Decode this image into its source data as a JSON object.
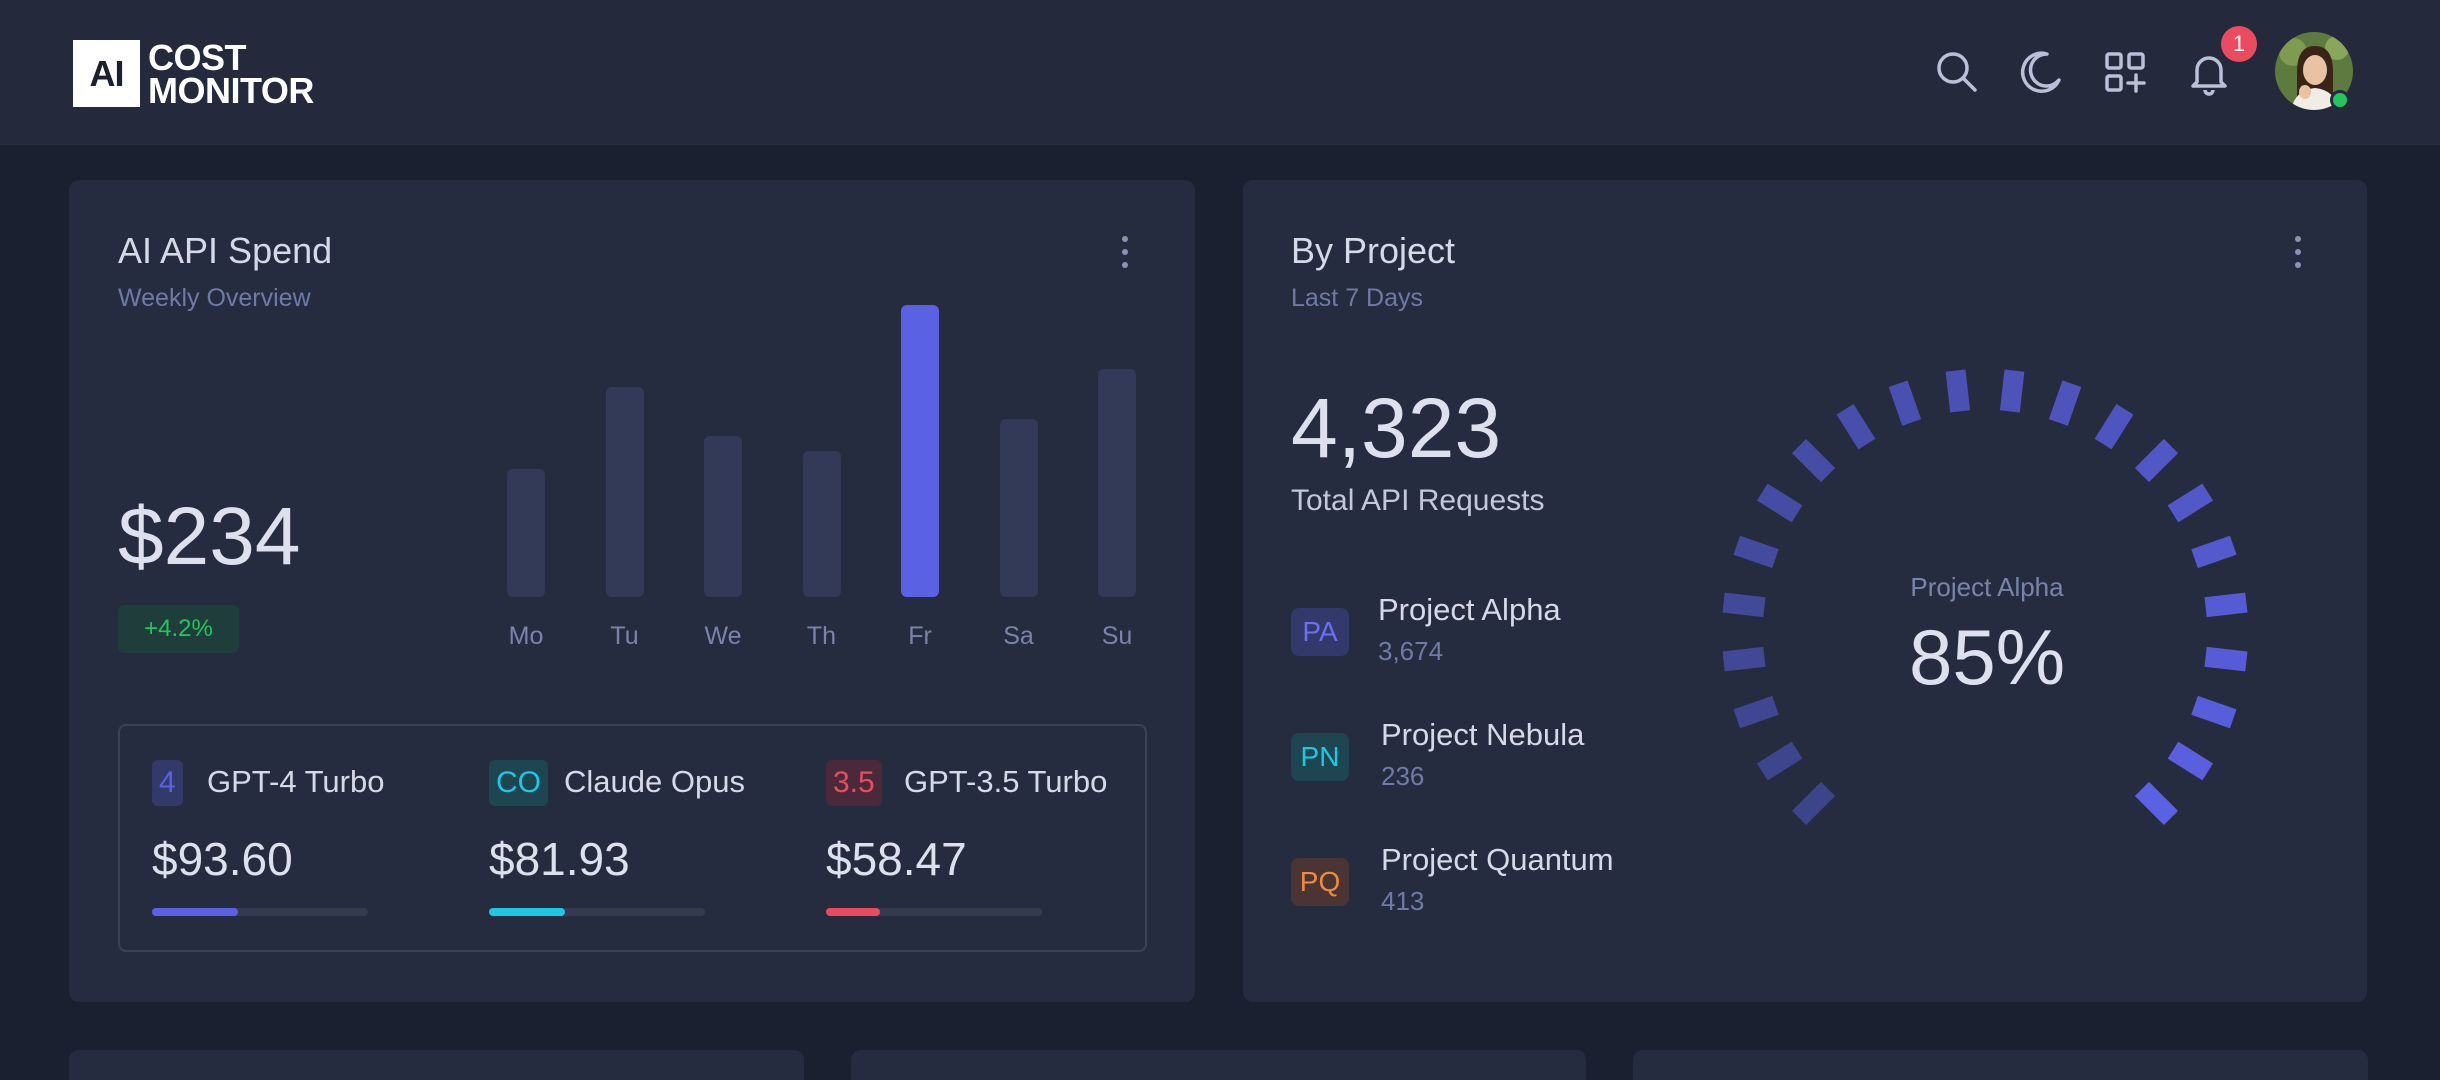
{
  "app": {
    "logo_mark": "AI",
    "logo_line1": "COST",
    "logo_line2": "MONITOR"
  },
  "header": {
    "icons": [
      "search-icon",
      "moon-icon",
      "apps-add-icon",
      "bell-icon"
    ],
    "notification_count": "1"
  },
  "spend_card": {
    "title": "AI API Spend",
    "subtitle": "Weekly Overview",
    "amount": "$234",
    "delta": "+4.2%",
    "accent": "#5b61e3",
    "bars": {
      "labels": [
        "Mo",
        "Tu",
        "We",
        "Th",
        "Fr",
        "Sa",
        "Su"
      ],
      "values": [
        0.44,
        0.72,
        0.55,
        0.5,
        1.0,
        0.61,
        0.78
      ],
      "active_index": 4
    },
    "models": [
      {
        "tag": "4",
        "name": "GPT-4 Turbo",
        "amount": "$93.60",
        "progress": 0.4,
        "color": "#5b61e3",
        "tag_bg": "#33396a"
      },
      {
        "tag": "CO",
        "name": "Claude Opus",
        "amount": "$81.93",
        "progress": 0.35,
        "color": "#1ec8e0",
        "tag_bg": "#1e4552"
      },
      {
        "tag": "3.5",
        "name": "GPT-3.5 Turbo",
        "amount": "$58.47",
        "progress": 0.25,
        "color": "#ea4b5f",
        "tag_bg": "#4a2a3a"
      }
    ]
  },
  "project_card": {
    "title": "By Project",
    "subtitle": "Last 7 Days",
    "total": "4,323",
    "total_label": "Total API Requests",
    "projects": [
      {
        "tag": "PA",
        "name": "Project Alpha",
        "value": "3,674",
        "color": "#6b6ff0",
        "tag_bg": "#33396a"
      },
      {
        "tag": "PN",
        "name": "Project Nebula",
        "value": "236",
        "color": "#1ec8e0",
        "tag_bg": "#1e4552"
      },
      {
        "tag": "PQ",
        "name": "Project Quantum",
        "value": "413",
        "color": "#f08a3c",
        "tag_bg": "#4a3434"
      }
    ],
    "gauge": {
      "label": "Project Alpha",
      "value": "85%",
      "percent": 0.85,
      "color": "#5b61e3"
    }
  }
}
